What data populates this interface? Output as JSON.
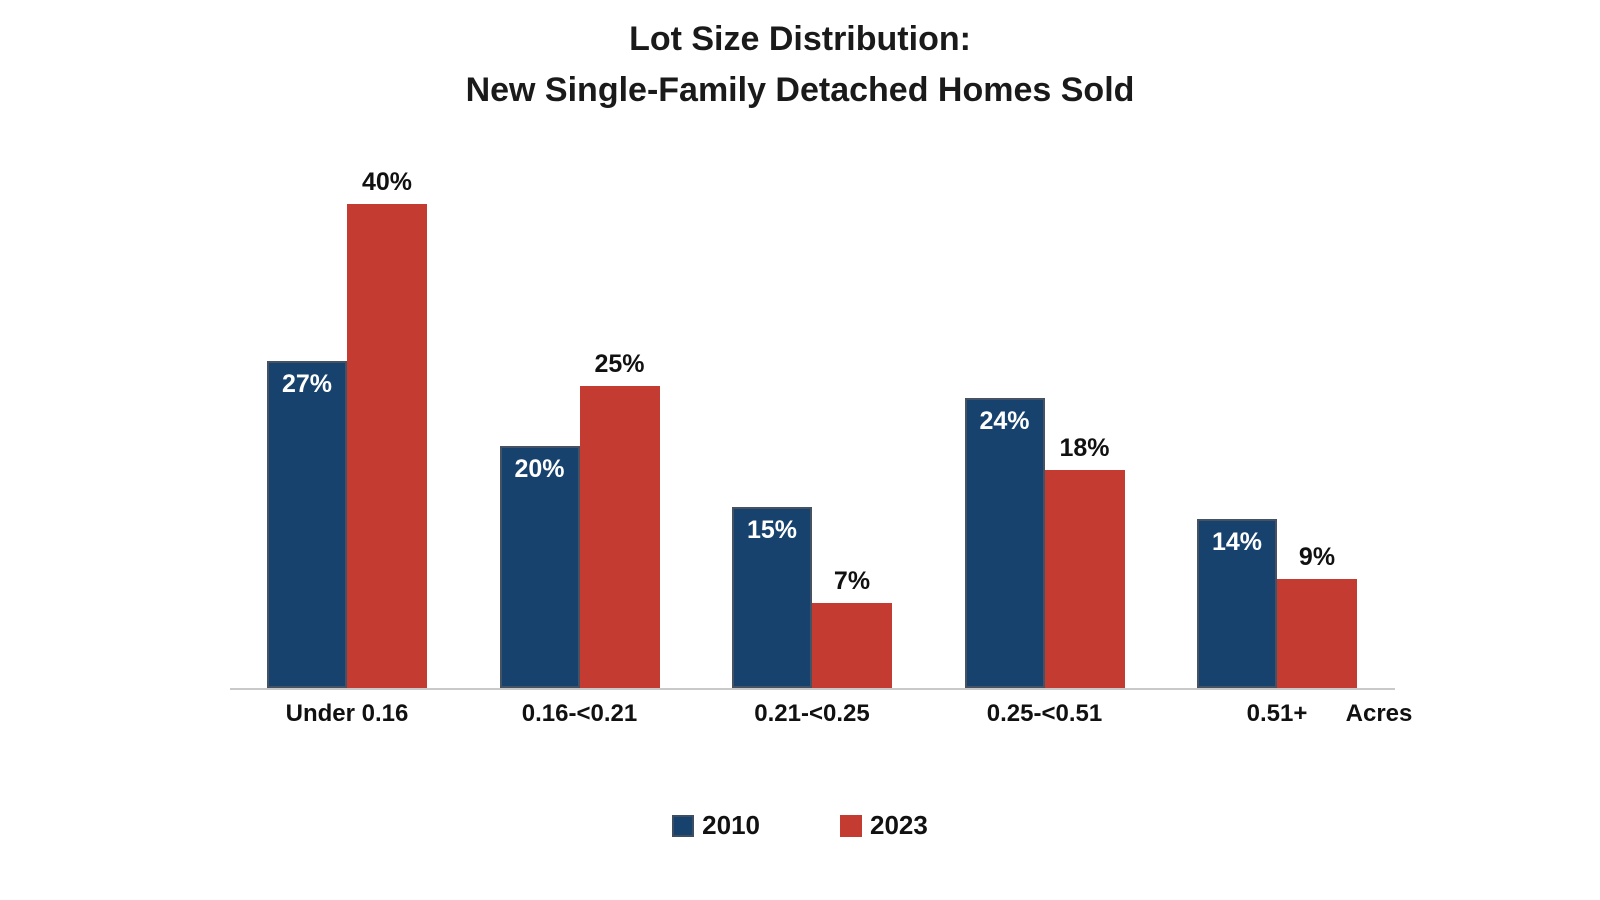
{
  "title": {
    "line1": "Lot Size Distribution:",
    "line2": "New Single-Family Detached Homes Sold"
  },
  "colors": {
    "series_2010": "#17426D",
    "series_2010_border": "#445263",
    "series_2023": "#C33B31",
    "axis_line": "#C9C9C9",
    "title_text": "#1A1A1A",
    "label_inside": "#FFFFFF",
    "label_outside": "#111111"
  },
  "chart_data": {
    "type": "bar",
    "title": "Lot Size Distribution: New Single-Family Detached Homes Sold",
    "categories": [
      "Under 0.16",
      "0.16-<0.21",
      "0.21-<0.25",
      "0.25-<0.51",
      "0.51+"
    ],
    "series": [
      {
        "name": "2010",
        "color": "#17426D",
        "values": [
          27,
          20,
          15,
          24,
          14
        ],
        "value_labels": [
          "27%",
          "20%",
          "15%",
          "24%",
          "14%"
        ],
        "label_position": "inside-top-white"
      },
      {
        "name": "2023",
        "color": "#C33B31",
        "values": [
          40,
          25,
          7,
          18,
          9
        ],
        "value_labels": [
          "40%",
          "25%",
          "7%",
          "18%",
          "9%"
        ],
        "label_position": "above-black"
      }
    ],
    "xlabel": "Acres",
    "ylabel": "",
    "ylim": [
      0,
      42
    ],
    "grid": false,
    "y_axis_visible": false,
    "legend_position": "bottom"
  },
  "legend": {
    "items": [
      {
        "label": "2010",
        "color": "#17426D"
      },
      {
        "label": "2023",
        "color": "#C33B31"
      }
    ]
  }
}
